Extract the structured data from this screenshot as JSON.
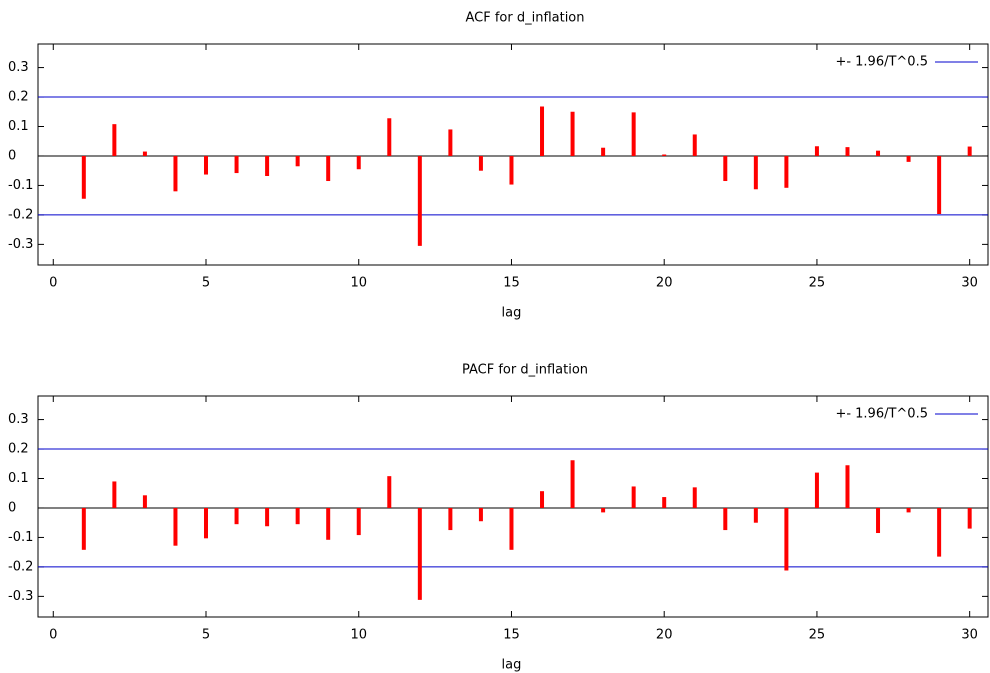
{
  "chart_data": [
    {
      "type": "bar",
      "title": "ACF for d_inflation",
      "x_label": "lag",
      "x": [
        1,
        2,
        3,
        4,
        5,
        6,
        7,
        8,
        9,
        10,
        11,
        12,
        13,
        14,
        15,
        16,
        17,
        18,
        19,
        20,
        21,
        22,
        23,
        24,
        25,
        26,
        27,
        28,
        29,
        30
      ],
      "values": [
        -0.145,
        0.108,
        0.015,
        -0.12,
        -0.063,
        -0.058,
        -0.068,
        -0.035,
        -0.085,
        -0.045,
        0.128,
        -0.305,
        0.09,
        -0.05,
        -0.097,
        0.168,
        0.15,
        0.028,
        0.148,
        0.005,
        0.073,
        -0.085,
        -0.113,
        -0.108,
        0.033,
        0.03,
        0.018,
        -0.02,
        -0.197,
        0.032
      ],
      "color": "#ff0000",
      "bands": {
        "name": "+- 1.96/T^0.5",
        "value": 0.2,
        "color": "#0000cc"
      },
      "xlim": [
        -0.5,
        30.6
      ],
      "xticks": [
        0,
        5,
        10,
        15,
        20,
        25,
        30
      ],
      "ylim": [
        -0.37,
        0.38
      ],
      "yticks": [
        -0.3,
        -0.2,
        -0.1,
        0,
        0.1,
        0.2,
        0.3
      ]
    },
    {
      "type": "bar",
      "title": "PACF for d_inflation",
      "x_label": "lag",
      "x": [
        1,
        2,
        3,
        4,
        5,
        6,
        7,
        8,
        9,
        10,
        11,
        12,
        13,
        14,
        15,
        16,
        17,
        18,
        19,
        20,
        21,
        22,
        23,
        24,
        25,
        26,
        27,
        28,
        29,
        30
      ],
      "values": [
        -0.142,
        0.09,
        0.043,
        -0.128,
        -0.103,
        -0.055,
        -0.062,
        -0.055,
        -0.108,
        -0.092,
        0.108,
        -0.312,
        -0.075,
        -0.045,
        -0.142,
        0.057,
        0.162,
        -0.015,
        0.073,
        0.037,
        0.07,
        -0.075,
        -0.05,
        -0.212,
        0.12,
        0.145,
        -0.085,
        -0.015,
        -0.165,
        -0.07
      ],
      "color": "#ff0000",
      "bands": {
        "name": "+- 1.96/T^0.5",
        "value": 0.2,
        "color": "#0000cc"
      },
      "xlim": [
        -0.5,
        30.6
      ],
      "xticks": [
        0,
        5,
        10,
        15,
        20,
        25,
        30
      ],
      "ylim": [
        -0.37,
        0.38
      ],
      "yticks": [
        -0.3,
        -0.2,
        -0.1,
        0,
        0.1,
        0.2,
        0.3
      ]
    }
  ]
}
